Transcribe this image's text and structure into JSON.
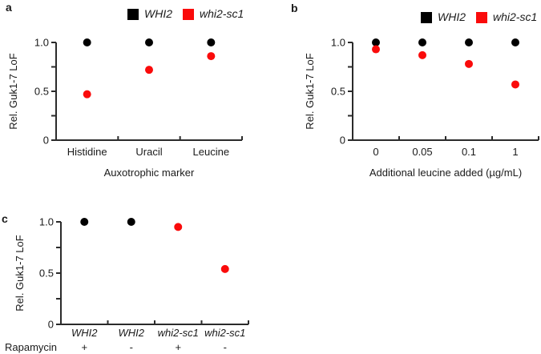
{
  "figure": {
    "background": "#ffffff",
    "text_color": "#1a1a1a",
    "axis_color": "#2b2b2b",
    "accent_red": "#fa0b0b"
  },
  "legend": {
    "items": [
      {
        "label": "WHI2",
        "color": "#000000"
      },
      {
        "label": "whi2-sc1",
        "color": "#fa0b0b"
      }
    ]
  },
  "panels": {
    "a": {
      "letter": "a"
    },
    "b": {
      "letter": "b"
    },
    "c": {
      "letter": "c"
    }
  },
  "chart_data": [
    {
      "id": "a",
      "type": "scatter",
      "title": "",
      "categories": [
        "Histidine",
        "Uracil",
        "Leucine"
      ],
      "categories_italic": false,
      "series": [
        {
          "name": "WHI2",
          "color": "#000000",
          "values": [
            1.0,
            1.0,
            1.0
          ]
        },
        {
          "name": "whi2-sc1",
          "color": "#fa0b0b",
          "values": [
            0.47,
            0.72,
            0.86
          ]
        }
      ],
      "xlabel": "Auxotrophic marker",
      "ylabel": "Rel. Guk1-7 LoF",
      "ylim": [
        0,
        1.0
      ],
      "yticks": [
        0,
        0.25,
        0.5,
        0.75,
        1.0
      ],
      "ytick_labels": [
        "0",
        "",
        "0.5",
        "",
        "1.0"
      ],
      "grid": false,
      "legend": true,
      "legend_position": "top-right"
    },
    {
      "id": "b",
      "type": "scatter",
      "title": "",
      "categories": [
        "0",
        "0.05",
        "0.1",
        "1"
      ],
      "categories_italic": false,
      "series": [
        {
          "name": "WHI2",
          "color": "#000000",
          "values": [
            1.0,
            1.0,
            1.0,
            1.0
          ]
        },
        {
          "name": "whi2-sc1",
          "color": "#fa0b0b",
          "values": [
            0.93,
            0.87,
            0.78,
            0.57
          ]
        }
      ],
      "xlabel": "Additional leucine added (µg/mL)",
      "ylabel": "Rel. Guk1-7 LoF",
      "ylim": [
        0,
        1.0
      ],
      "yticks": [
        0,
        0.25,
        0.5,
        0.75,
        1.0
      ],
      "ytick_labels": [
        "0",
        "",
        "0.5",
        "",
        "1.0"
      ],
      "grid": false,
      "legend": true,
      "legend_position": "top-right"
    },
    {
      "id": "c",
      "type": "scatter",
      "title": "",
      "categories": [
        "WHI2",
        "WHI2",
        "whi2-sc1",
        "whi2-sc1"
      ],
      "categories_italic": true,
      "series": [
        {
          "name": "WHI2",
          "color": "#000000",
          "values": [
            1.0,
            1.0,
            null,
            null
          ]
        },
        {
          "name": "whi2-sc1",
          "color": "#fa0b0b",
          "values": [
            null,
            null,
            0.95,
            0.54
          ]
        }
      ],
      "factor_row": {
        "label": "Rapamycin",
        "values": [
          "+",
          "-",
          "+",
          "-"
        ]
      },
      "xlabel": "",
      "ylabel": "Rel. Guk1-7 LoF",
      "ylim": [
        0,
        1.0
      ],
      "yticks": [
        0,
        0.25,
        0.5,
        0.75,
        1.0
      ],
      "ytick_labels": [
        "0",
        "",
        "0.5",
        "",
        "1.0"
      ],
      "grid": false,
      "legend": false
    }
  ]
}
